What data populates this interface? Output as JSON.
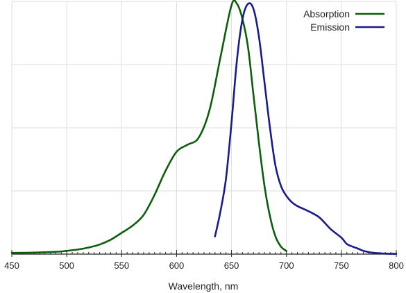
{
  "chart_data": {
    "type": "line",
    "title": "",
    "xlabel": "Wavelength, nm",
    "ylabel": "",
    "xlim": [
      450,
      800
    ],
    "ylim": [
      0,
      1
    ],
    "xticks": [
      450,
      500,
      550,
      600,
      650,
      700,
      750,
      800
    ],
    "xtick_labels": [
      "450",
      "500",
      "550",
      "600",
      "650",
      "700",
      "750",
      "800"
    ],
    "grid": true,
    "legend_position": "top-right",
    "series": [
      {
        "name": "Absorption",
        "color": "#0b5e0b",
        "points": [
          [
            450,
            0.005
          ],
          [
            470,
            0.006
          ],
          [
            490,
            0.009
          ],
          [
            500,
            0.013
          ],
          [
            510,
            0.018
          ],
          [
            520,
            0.026
          ],
          [
            530,
            0.038
          ],
          [
            540,
            0.057
          ],
          [
            550,
            0.084
          ],
          [
            560,
            0.113
          ],
          [
            570,
            0.155
          ],
          [
            580,
            0.235
          ],
          [
            590,
            0.33
          ],
          [
            600,
            0.405
          ],
          [
            610,
            0.433
          ],
          [
            620,
            0.46
          ],
          [
            630,
            0.57
          ],
          [
            640,
            0.78
          ],
          [
            650,
            0.985
          ],
          [
            655,
            0.99
          ],
          [
            660,
            0.93
          ],
          [
            665,
            0.82
          ],
          [
            670,
            0.63
          ],
          [
            675,
            0.44
          ],
          [
            680,
            0.27
          ],
          [
            685,
            0.15
          ],
          [
            690,
            0.07
          ],
          [
            695,
            0.03
          ],
          [
            700,
            0.012
          ]
        ]
      },
      {
        "name": "Emission",
        "color": "#1a1a8c",
        "points": [
          [
            635,
            0.07
          ],
          [
            640,
            0.17
          ],
          [
            645,
            0.3
          ],
          [
            650,
            0.52
          ],
          [
            655,
            0.77
          ],
          [
            660,
            0.93
          ],
          [
            665,
            0.99
          ],
          [
            670,
            0.97
          ],
          [
            675,
            0.86
          ],
          [
            680,
            0.68
          ],
          [
            685,
            0.5
          ],
          [
            690,
            0.35
          ],
          [
            695,
            0.27
          ],
          [
            700,
            0.23
          ],
          [
            705,
            0.205
          ],
          [
            710,
            0.19
          ],
          [
            720,
            0.17
          ],
          [
            730,
            0.145
          ],
          [
            740,
            0.1
          ],
          [
            750,
            0.065
          ],
          [
            755,
            0.04
          ],
          [
            760,
            0.03
          ],
          [
            765,
            0.022
          ],
          [
            770,
            0.013
          ],
          [
            775,
            0.008
          ],
          [
            780,
            0.005
          ],
          [
            790,
            0.002
          ],
          [
            800,
            0.001
          ]
        ]
      }
    ]
  }
}
